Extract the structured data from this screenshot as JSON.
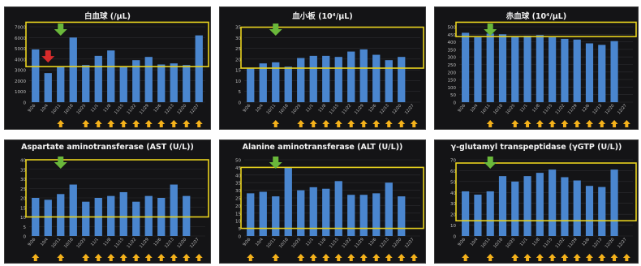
{
  "colors": {
    "panel_bg": "#141416",
    "bar": "#4a86cf",
    "normal_range_box": "#e8d21e",
    "marker_arrow": "#6ab83a",
    "up_arrow": "#f5b21b",
    "down_arrow": "#d92b2b",
    "title_text": "#f2f2f2",
    "axis_text": "#bfbfbf",
    "grid": "#2c2c30"
  },
  "icons": {
    "marker": "green-down-arrow-icon",
    "hormone_dose": "yellow-up-arrow-icon",
    "decrease": "red-down-arrow-icon"
  },
  "chart_data": [
    {
      "type": "bar",
      "title": "白血球 (/μL)",
      "categories": [
        "9/26",
        "10/4",
        "10/11",
        "10/18",
        "10/25",
        "11/1",
        "11/8",
        "11/15",
        "11/22",
        "11/29",
        "12/6",
        "12/13",
        "12/20",
        "12/27"
      ],
      "x_tick_labels": [
        "9/26",
        "10/4",
        "10/11",
        "10/18",
        "10/25",
        "11/1",
        "11/8",
        "11/15",
        "11/22",
        "11/29",
        "12/6",
        "12/13",
        "12/20",
        "12/27"
      ],
      "values": [
        4900,
        2700,
        3300,
        6000,
        3450,
        4300,
        4800,
        3300,
        3900,
        4200,
        3500,
        3600,
        3450,
        6200
      ],
      "ylim": [
        0,
        7000
      ],
      "yticks": [
        0,
        1000,
        2000,
        3000,
        4000,
        5000,
        6000,
        7000
      ],
      "normal_range": [
        3300,
        8000
      ],
      "green_marker_index": 2,
      "red_marker_index": 1,
      "up_arrow_indices": [
        2,
        4,
        5,
        6,
        7,
        8,
        9,
        10,
        11,
        12,
        13
      ]
    },
    {
      "type": "bar",
      "title": "血小板 (10⁴/μL)",
      "categories": [
        "9/26",
        "10/4",
        "10/11",
        "10/18",
        "10/25",
        "11/1",
        "11/8",
        "11/15",
        "11/22",
        "11/29",
        "12/6",
        "12/13",
        "12/20",
        "12/27"
      ],
      "x_tick_labels": [
        "9/26",
        "10/4",
        "10/11",
        "10/18",
        "10/25",
        "11/1",
        "11/8",
        "11/15",
        "11/22",
        "11/29",
        "12/6",
        "12/13",
        "12/20",
        "12/27"
      ],
      "values": [
        16,
        18,
        18.5,
        16.5,
        20.5,
        21.5,
        21.5,
        21,
        23.5,
        24.5,
        22,
        19.5,
        21,
        0
      ],
      "ylim": [
        0,
        35
      ],
      "yticks": [
        0,
        5,
        10,
        15,
        20,
        25,
        30,
        35
      ],
      "normal_range": [
        15.8,
        34.8
      ],
      "green_marker_index": 2,
      "up_arrow_indices": [
        2,
        4,
        5,
        6,
        7,
        8,
        9,
        10,
        11,
        12,
        13
      ]
    },
    {
      "type": "bar",
      "title": "赤血球 (10⁴/μL)",
      "categories": [
        "9/26",
        "10/4",
        "10/11",
        "10/18",
        "10/25",
        "11/1",
        "11/8",
        "11/15",
        "11/22",
        "11/29",
        "12/6",
        "12/13",
        "12/20",
        "12/27"
      ],
      "x_tick_labels": [
        "9/26",
        "10/4",
        "10/11",
        "10/18",
        "10/25",
        "11/1",
        "11/8",
        "11/15",
        "11/22",
        "11/29",
        "12/6",
        "12/13",
        "12/20",
        "12/27"
      ],
      "values": [
        460,
        430,
        455,
        450,
        435,
        440,
        445,
        430,
        420,
        415,
        390,
        380,
        405,
        0
      ],
      "ylim": [
        0,
        500
      ],
      "yticks": [
        0,
        50,
        100,
        150,
        200,
        250,
        300,
        350,
        400,
        450,
        500
      ],
      "normal_range": [
        435,
        555
      ],
      "green_marker_index": 2,
      "up_arrow_indices": [
        2,
        4,
        5,
        6,
        7,
        8,
        9,
        10,
        11,
        12,
        13
      ]
    },
    {
      "type": "bar",
      "title": "Aspartate aminotransferase (AST (U/L))",
      "categories": [
        "9/26",
        "10/4",
        "10/11",
        "10/18",
        "10/25",
        "11/1",
        "11/8",
        "11/15",
        "11/22",
        "11/29",
        "12/6",
        "12/13",
        "12/20",
        "12/27"
      ],
      "x_tick_labels": [
        "9/26",
        "10/4",
        "10/11",
        "10/18",
        "10/25",
        "11/1",
        "11/8",
        "11/15",
        "11/22",
        "11/29",
        "12/6",
        "12/13",
        "12/20",
        "12/27"
      ],
      "values": [
        20,
        19,
        22,
        27,
        18,
        20,
        21,
        23,
        18,
        21,
        20,
        27,
        21,
        0
      ],
      "ylim": [
        0,
        40
      ],
      "yticks": [
        0,
        5,
        10,
        15,
        20,
        25,
        30,
        35,
        40
      ],
      "normal_range": [
        10,
        40
      ],
      "green_marker_index": 2,
      "up_arrow_indices": [
        0,
        2,
        4,
        5,
        6,
        7,
        8,
        9,
        10,
        11,
        12,
        13
      ]
    },
    {
      "type": "bar",
      "title": "Alanine aminotransferase (ALT (U/L))",
      "categories": [
        "9/26",
        "10/4",
        "10/11",
        "10/18",
        "10/25",
        "11/1",
        "11/8",
        "11/15",
        "11/22",
        "11/29",
        "12/6",
        "12/13",
        "12/20",
        "12/27"
      ],
      "x_tick_labels": [
        "9/26",
        "10/4",
        "10/11",
        "10/18",
        "10/25",
        "11/1",
        "11/8",
        "11/15",
        "11/22",
        "11/29",
        "12/6",
        "12/13",
        "12/20",
        "12/27"
      ],
      "values": [
        28,
        29,
        26,
        45,
        30,
        32,
        31,
        36,
        27,
        27,
        28,
        35,
        26,
        0
      ],
      "ylim": [
        0,
        50
      ],
      "yticks": [
        0,
        5,
        10,
        15,
        20,
        25,
        30,
        35,
        40,
        45,
        50
      ],
      "normal_range": [
        5,
        45
      ],
      "green_marker_index": 2,
      "up_arrow_indices": [
        0,
        2,
        4,
        5,
        6,
        7,
        8,
        9,
        10,
        11,
        12,
        13
      ]
    },
    {
      "type": "bar",
      "title": "γ-glutamyl transpeptidase (γGTP (U/L))",
      "categories": [
        "9/26",
        "10/4",
        "10/11",
        "10/18",
        "10/25",
        "11/1",
        "11/8",
        "11/15",
        "11/22",
        "11/29",
        "12/6",
        "12/13",
        "12/20",
        "12/27"
      ],
      "x_tick_labels": [
        "9/26",
        "10/4",
        "10/11",
        "10/18",
        "10/25",
        "11/1",
        "11/8",
        "11/15",
        "11/22",
        "11/29",
        "12/6",
        "12/13",
        "12/20",
        "12/27"
      ],
      "values": [
        41,
        38,
        41,
        55,
        50,
        55,
        58,
        61,
        54,
        51,
        46,
        45,
        61,
        0
      ],
      "ylim": [
        0,
        70
      ],
      "yticks": [
        0,
        10,
        20,
        30,
        40,
        50,
        60,
        70
      ],
      "normal_range": [
        14,
        67
      ],
      "green_marker_index": 2,
      "up_arrow_indices": [
        0,
        2,
        4,
        5,
        6,
        7,
        8,
        9,
        10,
        11,
        12,
        13
      ]
    }
  ]
}
